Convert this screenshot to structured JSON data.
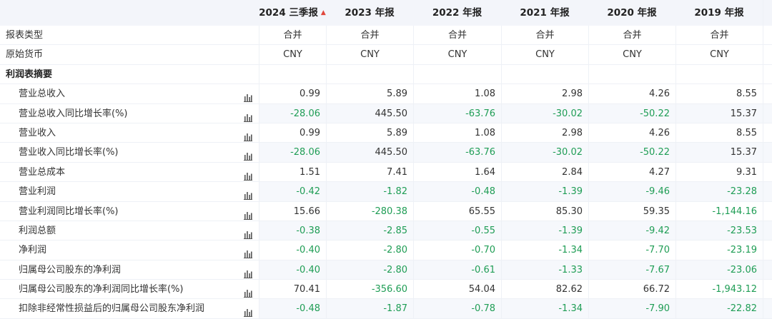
{
  "header": {
    "columns": [
      "2024 三季报",
      "2023 年报",
      "2022 年报",
      "2021 年报",
      "2020 年报",
      "2019 年报"
    ],
    "first_column_marker": "▲"
  },
  "info_rows": [
    {
      "label": "报表类型",
      "values": [
        "合并",
        "合并",
        "合并",
        "合并",
        "合并",
        "合并"
      ]
    },
    {
      "label": "原始货币",
      "values": [
        "CNY",
        "CNY",
        "CNY",
        "CNY",
        "CNY",
        "CNY"
      ]
    }
  ],
  "section_title": "利润表摘要",
  "rows": [
    {
      "label": "营业总收入",
      "values": [
        "0.99",
        "5.89",
        "1.08",
        "2.98",
        "4.26",
        "8.55"
      ]
    },
    {
      "label": "营业总收入同比增长率(%)",
      "values": [
        "-28.06",
        "445.50",
        "-63.76",
        "-30.02",
        "-50.22",
        "15.37"
      ]
    },
    {
      "label": "营业收入",
      "values": [
        "0.99",
        "5.89",
        "1.08",
        "2.98",
        "4.26",
        "8.55"
      ]
    },
    {
      "label": "营业收入同比增长率(%)",
      "values": [
        "-28.06",
        "445.50",
        "-63.76",
        "-30.02",
        "-50.22",
        "15.37"
      ]
    },
    {
      "label": "营业总成本",
      "values": [
        "1.51",
        "7.41",
        "1.64",
        "2.84",
        "4.27",
        "9.31"
      ]
    },
    {
      "label": "营业利润",
      "values": [
        "-0.42",
        "-1.82",
        "-0.48",
        "-1.39",
        "-9.46",
        "-23.28"
      ]
    },
    {
      "label": "营业利润同比增长率(%)",
      "values": [
        "15.66",
        "-280.38",
        "65.55",
        "85.30",
        "59.35",
        "-1,144.16"
      ]
    },
    {
      "label": "利润总额",
      "values": [
        "-0.38",
        "-2.85",
        "-0.55",
        "-1.39",
        "-9.42",
        "-23.53"
      ]
    },
    {
      "label": "净利润",
      "values": [
        "-0.40",
        "-2.80",
        "-0.70",
        "-1.34",
        "-7.70",
        "-23.19"
      ]
    },
    {
      "label": "归属母公司股东的净利润",
      "values": [
        "-0.40",
        "-2.80",
        "-0.61",
        "-1.33",
        "-7.67",
        "-23.06"
      ]
    },
    {
      "label": "归属母公司股东的净利润同比增长率(%)",
      "values": [
        "70.41",
        "-356.60",
        "54.04",
        "82.62",
        "66.72",
        "-1,943.12"
      ]
    },
    {
      "label": "扣除非经常性损益后的归属母公司股东净利润",
      "values": [
        "-0.48",
        "-1.87",
        "-0.78",
        "-1.34",
        "-7.90",
        "-22.82"
      ]
    }
  ],
  "icons": {
    "row_chart": "bar-chart-icon"
  },
  "colors": {
    "negative": "#1f9d55",
    "header_bg": "#f3f5fa",
    "stripe": "#f6f8fc",
    "marker": "#e0463b"
  }
}
